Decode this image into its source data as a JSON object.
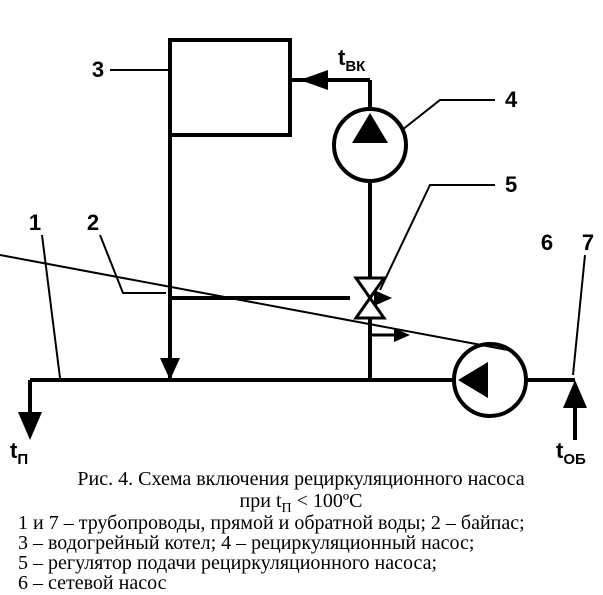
{
  "stroke": "#000000",
  "bg": "#ffffff",
  "line_main": 4,
  "line_leader": 2,
  "pump_radius": 36,
  "t_vk": {
    "base": "t",
    "sub": "ВК"
  },
  "t_p": {
    "base": "t",
    "sub": "П"
  },
  "t_ob": {
    "base": "t",
    "sub": "ОБ"
  },
  "nums": {
    "n1": "1",
    "n2": "2",
    "n3": "3",
    "n4": "4",
    "n5": "5",
    "n6": "6",
    "n7": "7"
  },
  "caption": {
    "l1": "Рис. 4. Схема включения рециркуляционного насоса",
    "l2_pre": "при  t",
    "l2_sub": "П",
    "l2_post": " < 100ºС",
    "l3": "1  и  7 – трубопроводы, прямой и обратной воды;  2 – байпас;",
    "l4": "3 – водогрейный котел;   4  –  рециркуляционный  насос;",
    "l5": "5   –   регулятор   подачи   рециркуляционного   насоса;",
    "l6": "6 – сетевой насос"
  }
}
